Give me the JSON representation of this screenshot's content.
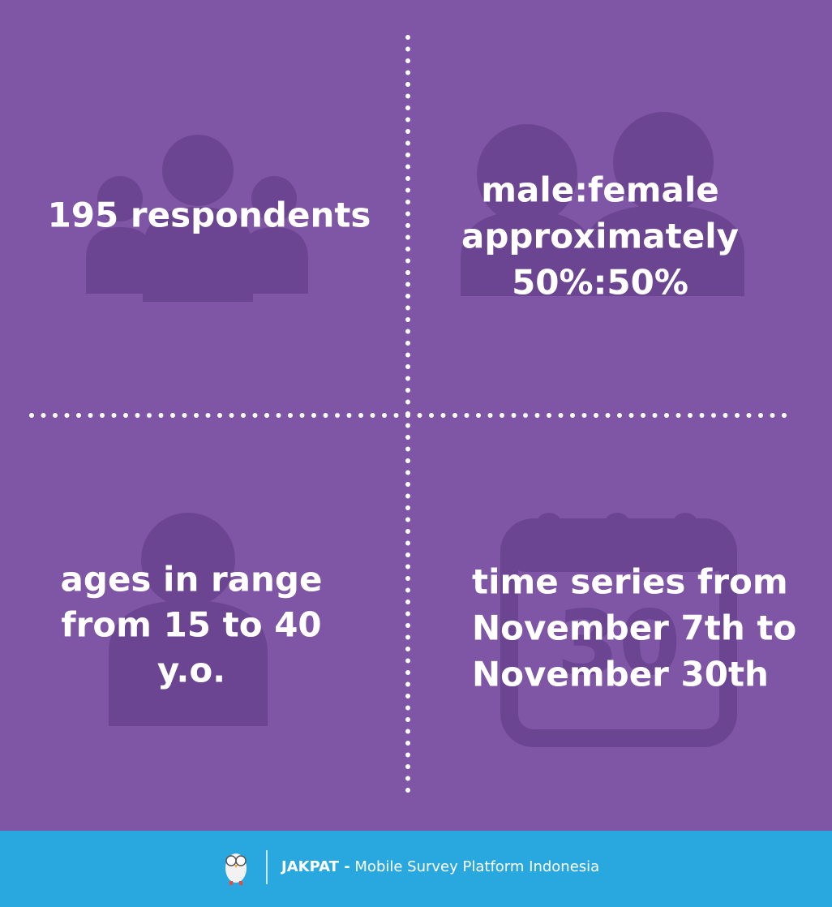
{
  "quadrants": [
    {
      "lines": [
        "195 respondents"
      ]
    },
    {
      "lines": [
        "male:female",
        "approximately",
        "50%:50%"
      ]
    },
    {
      "lines": [
        "ages in range",
        "from 15 to 40",
        "y.o."
      ]
    },
    {
      "lines": [
        "time series from",
        "November 7th to",
        "November 30th"
      ],
      "calendar_day": "30"
    }
  ],
  "footer": {
    "brand": "JAKPAT -",
    "tagline": "Mobile Survey Platform Indonesia"
  }
}
